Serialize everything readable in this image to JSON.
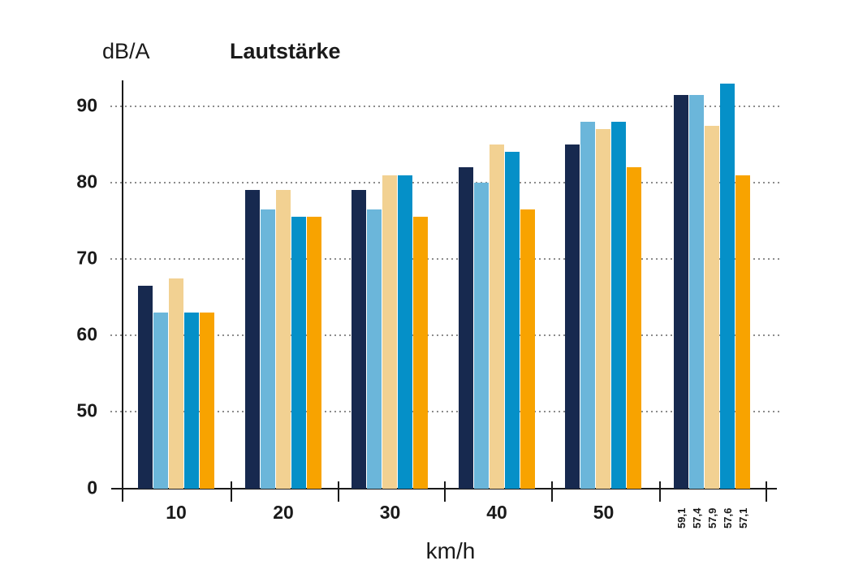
{
  "chart": {
    "title": "Lautstärke",
    "y_unit": "dB/A",
    "x_unit": "km/h"
  },
  "chart_data": {
    "type": "bar",
    "title": "Lautstärke",
    "ylabel": "dB/A",
    "xlabel": "km/h",
    "categories": [
      "10",
      "20",
      "30",
      "40",
      "50",
      ""
    ],
    "last_group_bar_labels": [
      "59,1",
      "57,4",
      "57,9",
      "57,6",
      "57,1"
    ],
    "series": [
      {
        "name": "navy",
        "color": "#17294F",
        "values": [
          66.5,
          79,
          79,
          82,
          85,
          91.5
        ]
      },
      {
        "name": "light-blue",
        "color": "#6BB6DA",
        "values": [
          63,
          76.5,
          76.5,
          80,
          88,
          91.5
        ]
      },
      {
        "name": "sand",
        "color": "#F2D192",
        "values": [
          67.5,
          79,
          81,
          85,
          87,
          87.5
        ]
      },
      {
        "name": "blue",
        "color": "#0590C8",
        "values": [
          63,
          75.5,
          81,
          84,
          88,
          93
        ]
      },
      {
        "name": "orange",
        "color": "#F8A300",
        "values": [
          63,
          75.5,
          75.5,
          76.5,
          82,
          81
        ]
      }
    ],
    "y_axis": {
      "ticks": [
        90,
        80,
        70,
        60,
        50,
        0
      ],
      "gridline_values": [
        90,
        80,
        70,
        60,
        50
      ],
      "broken_axis_below": 50,
      "grid": true
    },
    "legend": "none"
  },
  "colors": {
    "background": "#ffffff",
    "axis": "#1a1a1a",
    "grid": "#8c8c8c",
    "text": "#1a1a1a"
  }
}
